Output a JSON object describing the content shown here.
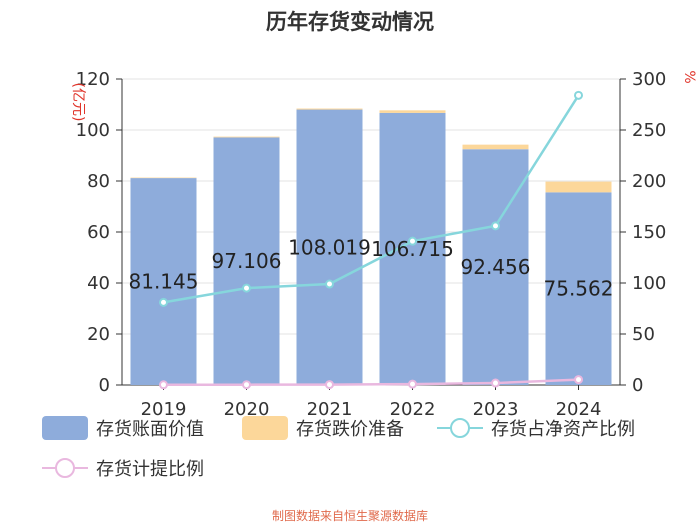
{
  "title": "历年存货变动情况",
  "source": "制图数据来自恒生聚源数据库",
  "chart_data": {
    "type": "bar",
    "categories": [
      "2019",
      "2020",
      "2021",
      "2022",
      "2023",
      "2024"
    ],
    "series": [
      {
        "name": "存货账面价值",
        "kind": "bar",
        "axis": "left",
        "color": "#8eacdb",
        "values": [
          81.145,
          97.106,
          108.019,
          106.715,
          92.456,
          75.562
        ]
      },
      {
        "name": "存货跌价准备",
        "kind": "bar-stack",
        "axis": "left",
        "color": "#fcd79a",
        "values": [
          0.2,
          0.3,
          0.4,
          1.0,
          1.8,
          4.2
        ]
      },
      {
        "name": "存货占净资产比例",
        "kind": "line",
        "axis": "right",
        "color": "#86d6dc",
        "values": [
          81,
          95,
          99,
          141,
          156,
          284
        ]
      },
      {
        "name": "存货计提比例",
        "kind": "line",
        "axis": "right",
        "color": "#e9b8df",
        "values": [
          0.2,
          0.3,
          0.4,
          0.9,
          1.9,
          5.3
        ]
      }
    ],
    "data_labels": [
      "81.145",
      "97.106",
      "108.019",
      "106.715",
      "92.456",
      "75.562"
    ],
    "y_left": {
      "label": "(亿元)",
      "ticks": [
        "0",
        "20",
        "40",
        "60",
        "80",
        "100",
        "120"
      ],
      "lim": [
        0,
        120
      ]
    },
    "y_right": {
      "label": "%",
      "ticks": [
        "0",
        "50",
        "100",
        "150",
        "200",
        "250",
        "300"
      ],
      "lim": [
        0,
        300
      ]
    },
    "grid": true,
    "legend_position": "bottom"
  }
}
